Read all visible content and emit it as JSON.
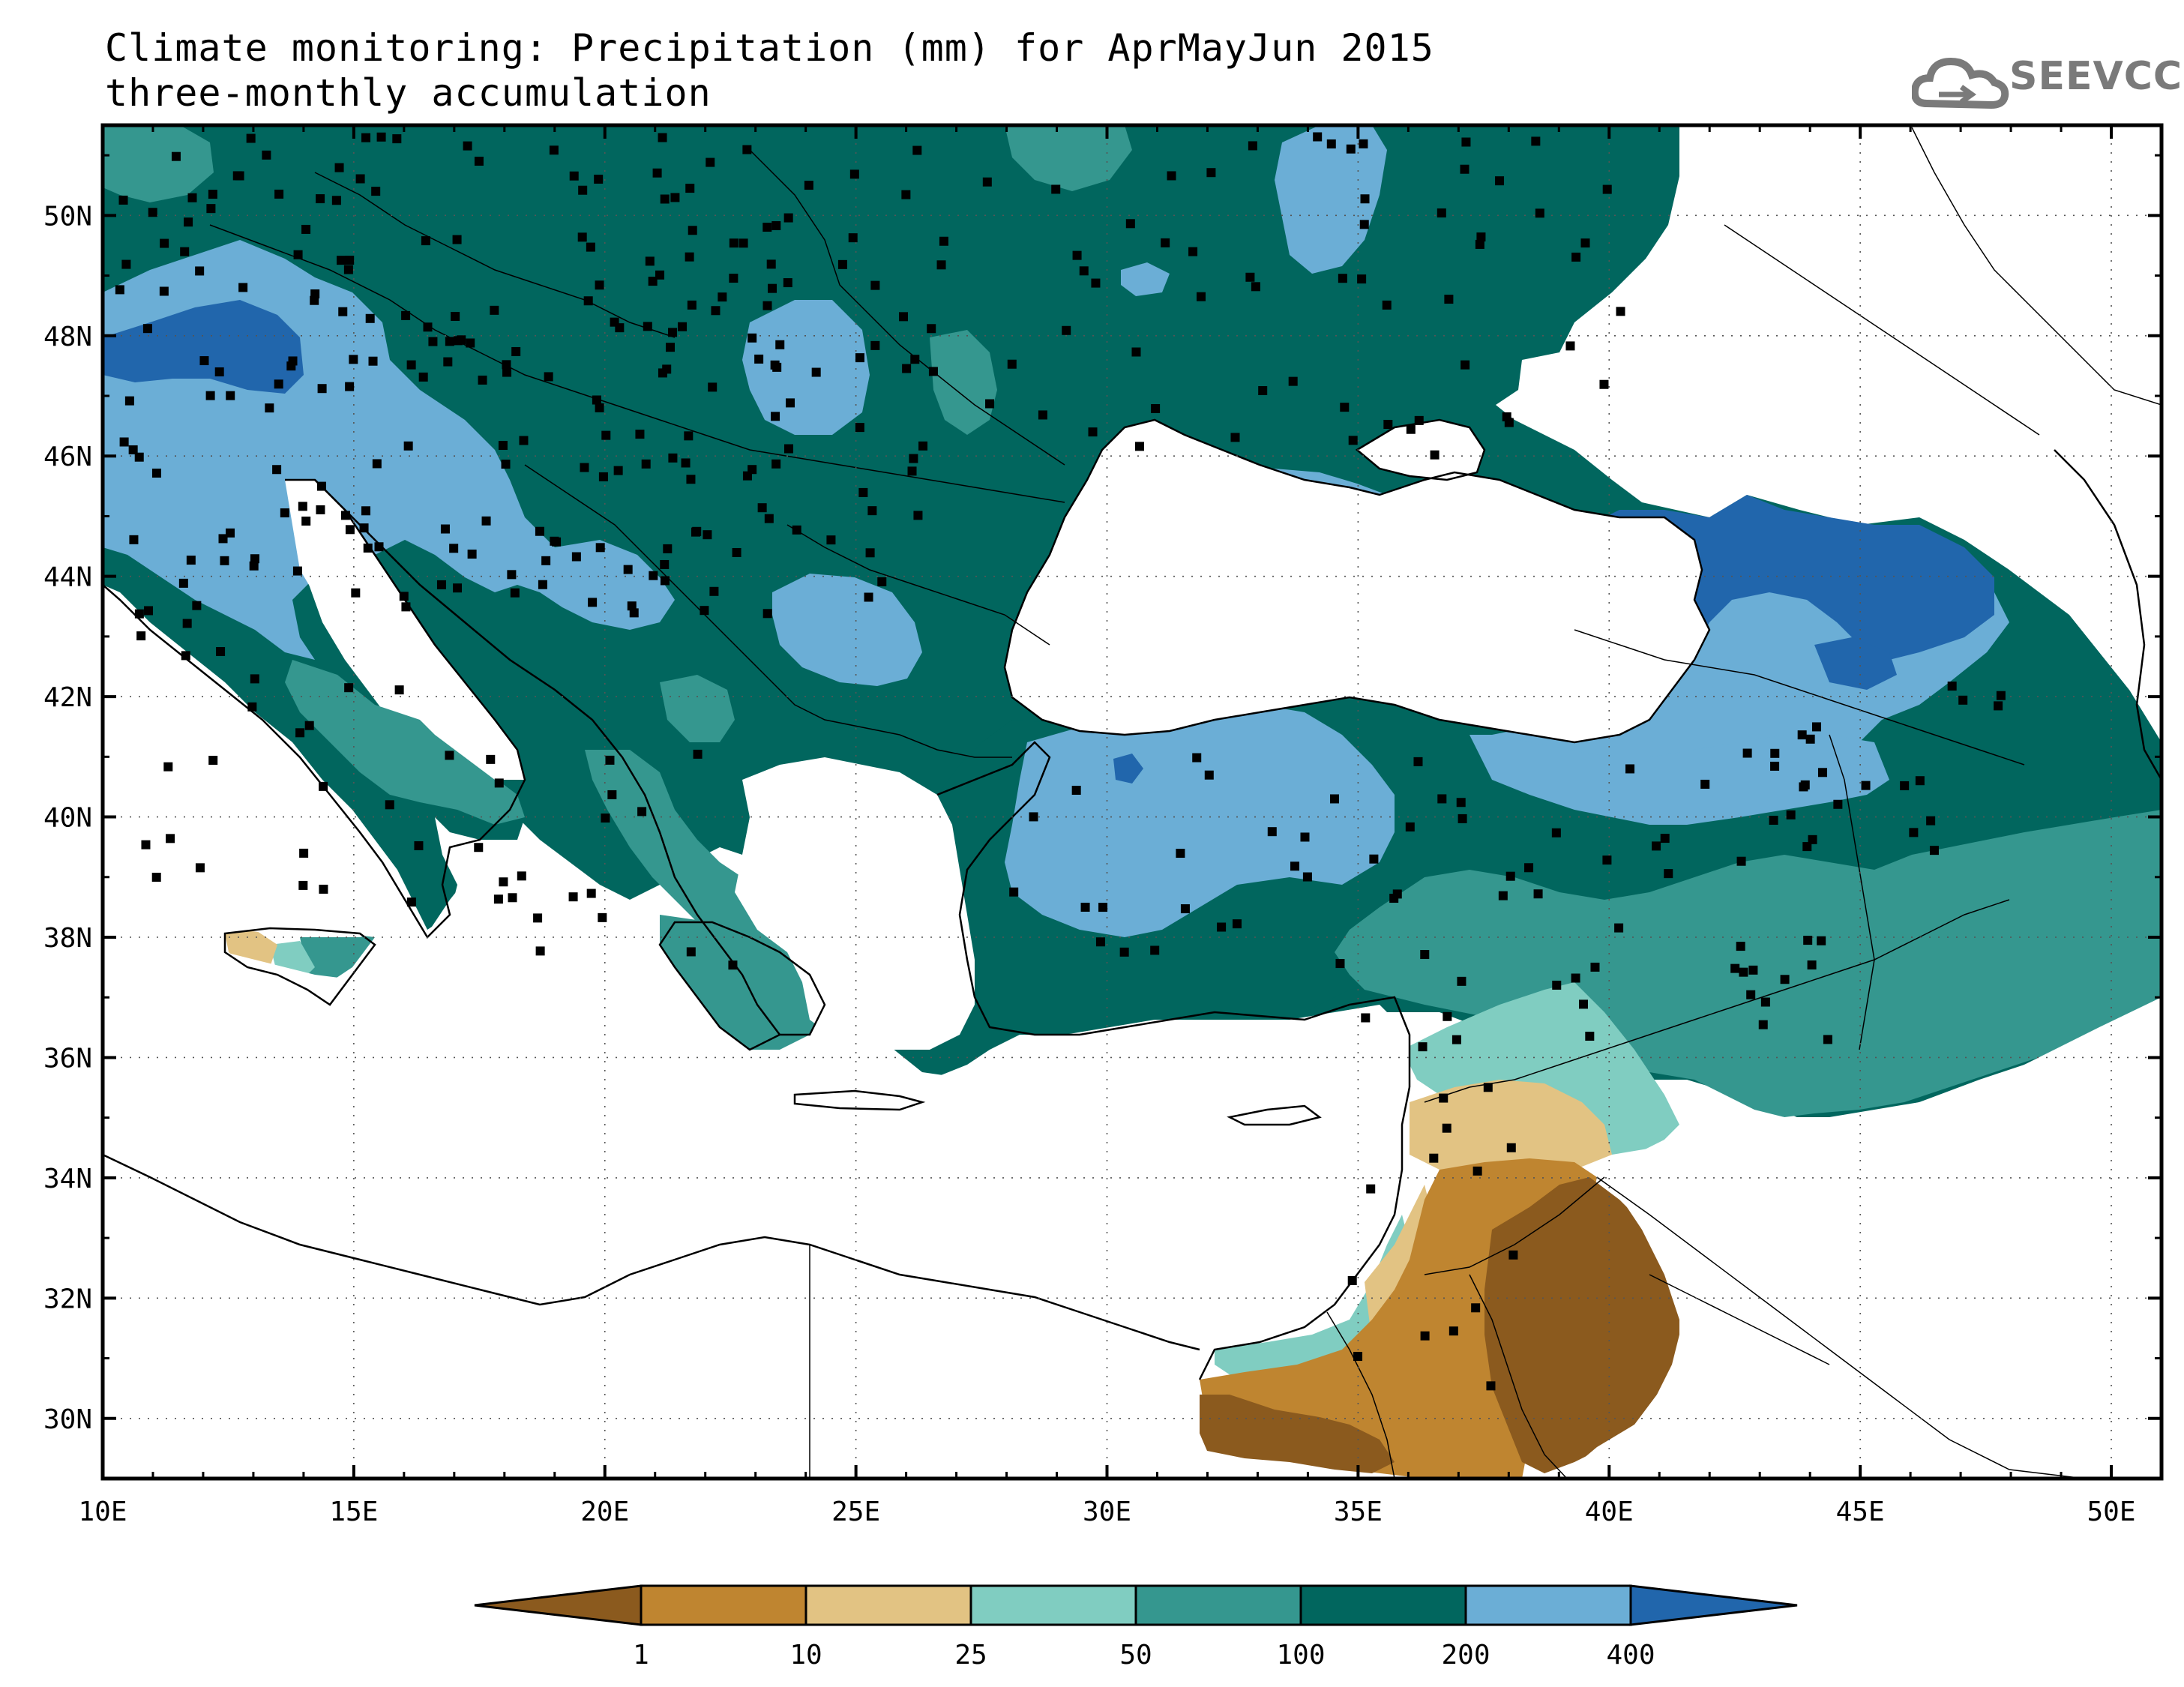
{
  "header": {
    "title_line1": "Climate monitoring: Precipitation (mm) for AprMayJun 2015",
    "title_line2": "three-monthly accumulation"
  },
  "logo": {
    "text": "SEEVCCC",
    "icon": "cloud-icon"
  },
  "map": {
    "lon_range": [
      10,
      51
    ],
    "lat_range": [
      29,
      51.5
    ],
    "lon_ticks": [
      "10E",
      "15E",
      "20E",
      "25E",
      "30E",
      "35E",
      "40E",
      "45E",
      "50E"
    ],
    "lat_ticks": [
      "30N",
      "32N",
      "34N",
      "36N",
      "38N",
      "40N",
      "42N",
      "44N",
      "46N",
      "48N",
      "50N"
    ],
    "grid": "dotted"
  },
  "legend": {
    "thresholds": [
      "1",
      "10",
      "25",
      "50",
      "100",
      "200",
      "400"
    ],
    "colors": [
      "#8b5a1e",
      "#bf8530",
      "#e2c383",
      "#80cdc1",
      "#35978f",
      "#01665e",
      "#6baed6",
      "#2166ac"
    ]
  }
}
